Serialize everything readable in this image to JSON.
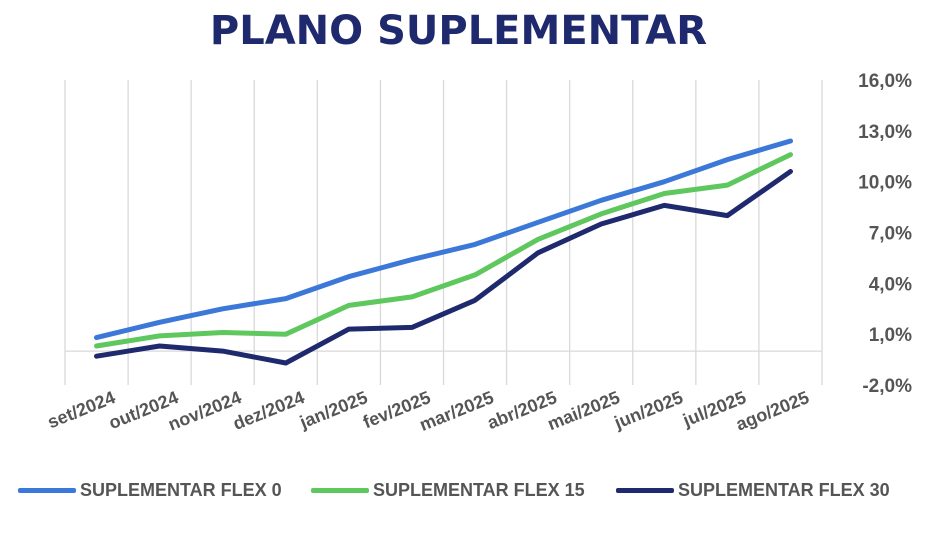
{
  "title": "PLANO SUPLEMENTAR",
  "chart_data": {
    "type": "line",
    "title": "PLANO SUPLEMENTAR",
    "categories": [
      "set/2024",
      "out/2024",
      "nov/2024",
      "dez/2024",
      "jan/2025",
      "fev/2025",
      "mar/2025",
      "abr/2025",
      "mai/2025",
      "jun/2025",
      "jul/2025",
      "ago/2025"
    ],
    "y_ticks": [
      "-2,0%",
      "1,0%",
      "4,0%",
      "7,0%",
      "10,0%",
      "13,0%",
      "16,0%"
    ],
    "ylim": [
      -2,
      16
    ],
    "y_axis_position": "right",
    "grid": "vertical",
    "legend_position": "bottom",
    "series": [
      {
        "name": "SUPLEMENTAR FLEX 0",
        "color": "#3b78d8",
        "values": [
          0.8,
          1.7,
          2.5,
          3.1,
          4.4,
          5.4,
          6.3,
          7.6,
          8.9,
          10.0,
          11.3,
          12.4
        ]
      },
      {
        "name": "SUPLEMENTAR FLEX 15",
        "color": "#5ec75e",
        "values": [
          0.3,
          0.9,
          1.1,
          1.0,
          2.7,
          3.2,
          4.5,
          6.6,
          8.1,
          9.3,
          9.8,
          11.6
        ]
      },
      {
        "name": "SUPLEMENTAR FLEX 30",
        "color": "#1f2a6e",
        "values": [
          -0.3,
          0.3,
          0.0,
          -0.7,
          1.3,
          1.4,
          3.0,
          5.8,
          7.5,
          8.6,
          8.0,
          10.6
        ]
      }
    ]
  }
}
